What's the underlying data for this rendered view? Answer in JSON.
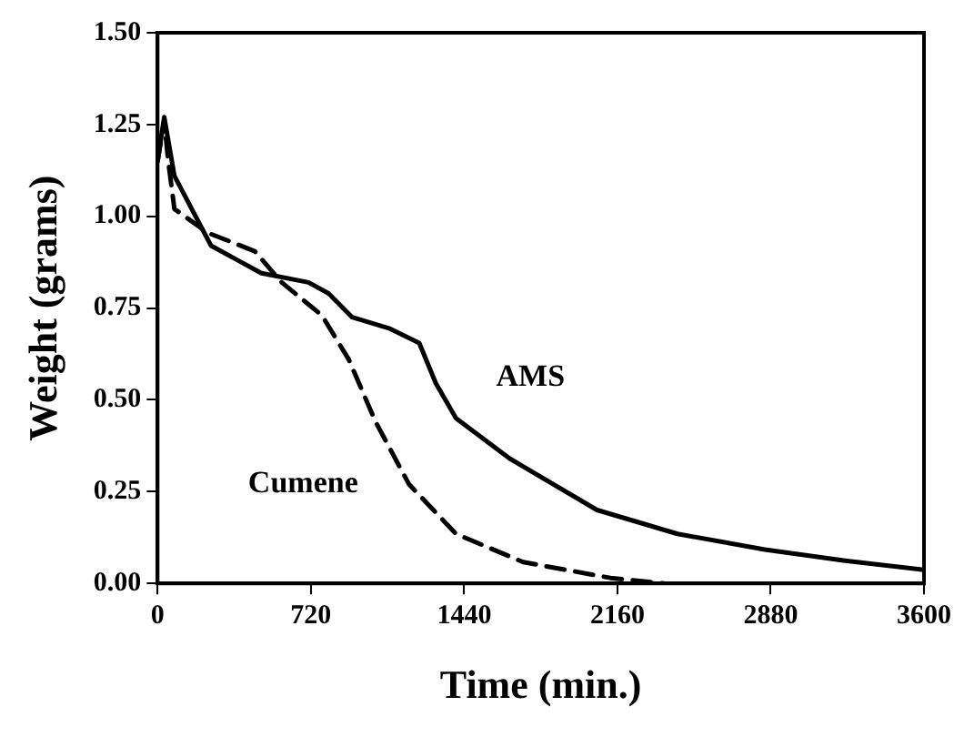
{
  "chart_data": {
    "type": "line",
    "xlabel": "Time (min.)",
    "ylabel": "Weight (grams)",
    "xlim": [
      0,
      3600
    ],
    "xticks": [
      0,
      720,
      1440,
      2160,
      2880,
      3600
    ],
    "ylim": [
      0,
      1.5
    ],
    "yticks": [
      {
        "value": 0,
        "label": "0.00"
      },
      {
        "value": 0.25,
        "label": "0.25"
      },
      {
        "value": 0.5,
        "label": "0.50"
      },
      {
        "value": 0.75,
        "label": "0.75"
      },
      {
        "value": 1,
        "label": "1.00"
      },
      {
        "value": 1.25,
        "label": "1.25"
      },
      {
        "value": 1.5,
        "label": "1.50"
      }
    ],
    "grid": false,
    "legend": false,
    "marker": "none",
    "series": [
      {
        "name": "AMS",
        "color": "#000000",
        "line_style": "solid",
        "x": [
          0,
          31,
          79,
          251,
          488,
          709,
          803,
          914,
          1087,
          1229,
          1307,
          1402,
          1654,
          2064,
          2442,
          2852,
          3230,
          3600
        ],
        "values": [
          1.15,
          1.27,
          1.11,
          0.92,
          0.845,
          0.82,
          0.79,
          0.725,
          0.695,
          0.655,
          0.545,
          0.45,
          0.34,
          0.2,
          0.135,
          0.092,
          0.062,
          0.037
        ]
      },
      {
        "name": "Cumene",
        "color": "#000000",
        "line_style": "dashed",
        "x": [
          0,
          31,
          50,
          79,
          236,
          456,
          583,
          772,
          898,
          1024,
          1181,
          1402,
          1717,
          2127,
          2379
        ],
        "values": [
          1.15,
          1.26,
          1.15,
          1.02,
          0.955,
          0.905,
          0.82,
          0.73,
          0.61,
          0.44,
          0.27,
          0.135,
          0.058,
          0.015,
          0.0
        ]
      }
    ]
  }
}
